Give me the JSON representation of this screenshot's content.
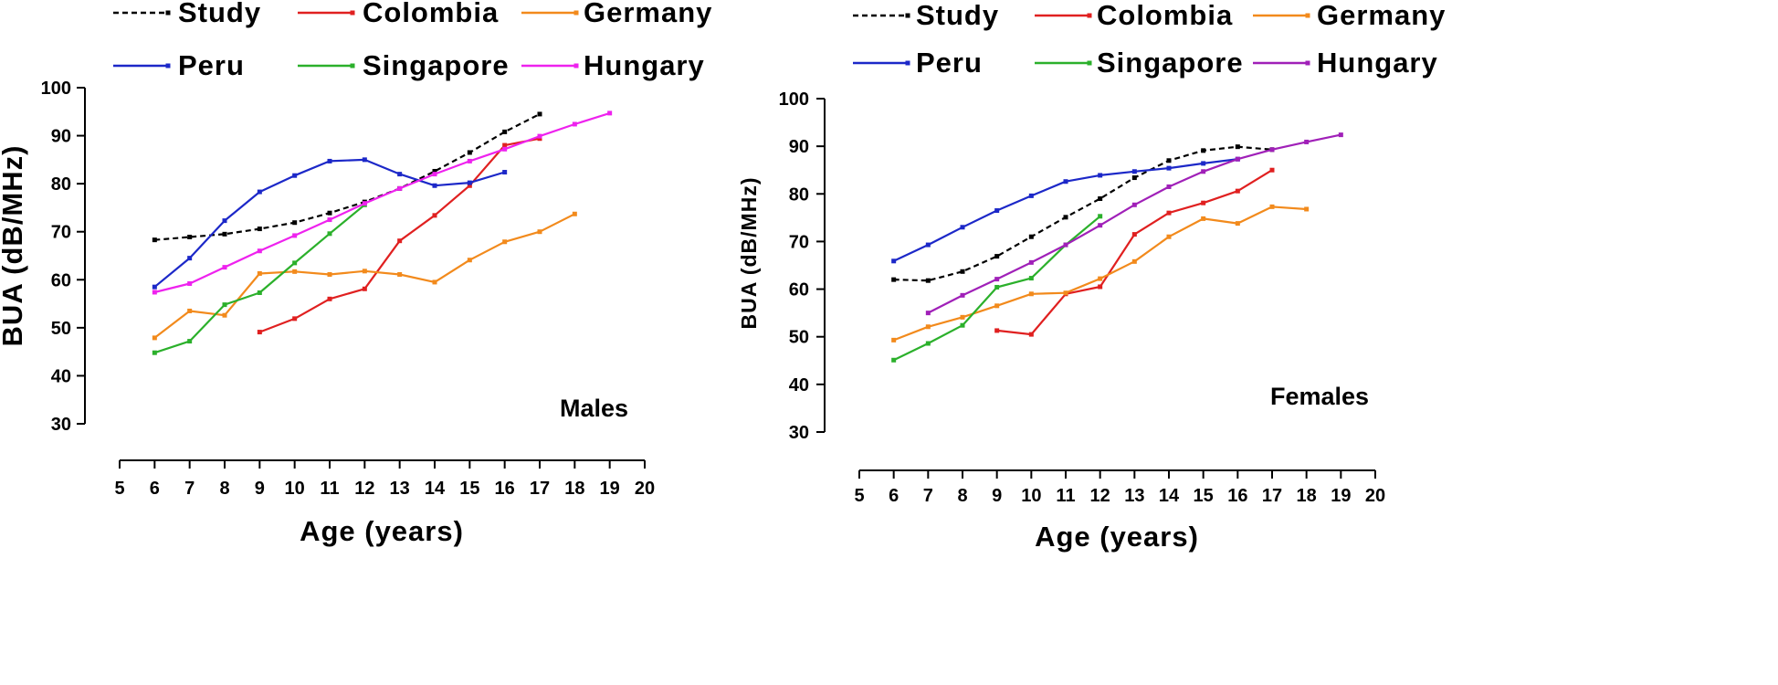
{
  "chart_data": [
    {
      "type": "line",
      "panel_label": "Males",
      "xlabel": "Age (years)",
      "ylabel": "BUA (dB/MHz)",
      "xlim": [
        5,
        20
      ],
      "ylim": [
        30,
        100
      ],
      "xticks": [
        "5",
        "6",
        "7",
        "8",
        "9",
        "10",
        "11",
        "12",
        "13",
        "14",
        "15",
        "16",
        "17",
        "18",
        "19",
        "20"
      ],
      "yticks": [
        "30",
        "40",
        "50",
        "60",
        "70",
        "80",
        "90",
        "100"
      ],
      "series": [
        {
          "name": "Study",
          "color": "#000000",
          "dashed": true,
          "x": [
            6,
            7,
            8,
            9,
            10,
            11,
            12,
            13,
            14,
            15,
            16,
            17
          ],
          "y": [
            68.3,
            68.9,
            69.5,
            70.6,
            71.9,
            73.9,
            76.2,
            79.0,
            82.6,
            86.5,
            90.8,
            94.5
          ]
        },
        {
          "name": "Colombia",
          "color": "#e02020",
          "dashed": false,
          "x": [
            9,
            10,
            11,
            12,
            13,
            14,
            15,
            16,
            17
          ],
          "y": [
            49.1,
            51.9,
            56.0,
            58.1,
            68.1,
            73.4,
            79.6,
            88.0,
            89.4
          ]
        },
        {
          "name": "Germany",
          "color": "#f28a1c",
          "dashed": false,
          "x": [
            6,
            7,
            8,
            9,
            10,
            11,
            12,
            13,
            14,
            15,
            16,
            17,
            18
          ],
          "y": [
            47.9,
            53.5,
            52.6,
            61.3,
            61.7,
            61.1,
            61.8,
            61.1,
            59.5,
            64.1,
            67.9,
            70.0,
            73.7
          ]
        },
        {
          "name": "Peru",
          "color": "#1c28c8",
          "dashed": false,
          "x": [
            6,
            7,
            8,
            9,
            10,
            11,
            12,
            13,
            14,
            15,
            16
          ],
          "y": [
            58.5,
            64.5,
            72.3,
            78.3,
            81.7,
            84.7,
            85.0,
            82.0,
            79.6,
            80.2,
            82.4
          ]
        },
        {
          "name": "Singapore",
          "color": "#2bb02b",
          "dashed": false,
          "x": [
            6,
            7,
            8,
            9,
            10,
            11,
            12
          ],
          "y": [
            44.8,
            47.2,
            54.8,
            57.3,
            63.5,
            69.6,
            75.6
          ]
        },
        {
          "name": "Hungary",
          "color": "#ee22ee",
          "dashed": false,
          "x": [
            6,
            7,
            8,
            9,
            10,
            11,
            12,
            13,
            14,
            15,
            16,
            17,
            18,
            19
          ],
          "y": [
            57.4,
            59.2,
            62.6,
            66.0,
            69.2,
            72.5,
            75.9,
            79.0,
            82.0,
            84.7,
            87.2,
            89.9,
            92.4,
            94.7
          ]
        }
      ]
    },
    {
      "type": "line",
      "panel_label": "Females",
      "xlabel": "Age (years)",
      "ylabel": "BUA (dB/MHz)",
      "xlim": [
        5,
        20
      ],
      "ylim": [
        30,
        100
      ],
      "xticks": [
        "5",
        "6",
        "7",
        "8",
        "9",
        "10",
        "11",
        "12",
        "13",
        "14",
        "15",
        "16",
        "17",
        "18",
        "19",
        "20"
      ],
      "yticks": [
        "30",
        "40",
        "50",
        "60",
        "70",
        "80",
        "90",
        "100"
      ],
      "series": [
        {
          "name": "Study",
          "color": "#000000",
          "dashed": true,
          "x": [
            6,
            7,
            8,
            9,
            10,
            11,
            12,
            13,
            14,
            15,
            16,
            17
          ],
          "y": [
            62.0,
            61.8,
            63.7,
            66.9,
            71.0,
            75.1,
            79.0,
            83.4,
            87.0,
            89.1,
            89.9,
            89.3
          ]
        },
        {
          "name": "Colombia",
          "color": "#e02020",
          "dashed": false,
          "x": [
            9,
            10,
            11,
            12,
            13,
            14,
            15,
            16,
            17
          ],
          "y": [
            51.3,
            50.5,
            59.0,
            60.5,
            71.5,
            76.0,
            78.1,
            80.6,
            85.0
          ]
        },
        {
          "name": "Germany",
          "color": "#f28a1c",
          "dashed": false,
          "x": [
            6,
            7,
            8,
            9,
            10,
            11,
            12,
            13,
            14,
            15,
            16,
            17,
            18
          ],
          "y": [
            49.3,
            52.1,
            54.1,
            56.5,
            59.0,
            59.2,
            62.2,
            65.8,
            71.0,
            74.8,
            73.8,
            77.3,
            76.8
          ]
        },
        {
          "name": "Peru",
          "color": "#1c28c8",
          "dashed": false,
          "x": [
            6,
            7,
            8,
            9,
            10,
            11,
            12,
            13,
            14,
            15,
            16
          ],
          "y": [
            65.9,
            69.3,
            73.0,
            76.5,
            79.6,
            82.6,
            83.9,
            84.7,
            85.4,
            86.4,
            87.3
          ]
        },
        {
          "name": "Singapore",
          "color": "#2bb02b",
          "dashed": false,
          "x": [
            6,
            7,
            8,
            9,
            10,
            11,
            12
          ],
          "y": [
            45.1,
            48.6,
            52.4,
            60.4,
            62.3,
            69.3,
            75.3
          ]
        },
        {
          "name": "Hungary",
          "color": "#a020b8",
          "dashed": false,
          "x": [
            7,
            8,
            9,
            10,
            11,
            12,
            13,
            14,
            15,
            16,
            17,
            18,
            19
          ],
          "y": [
            55.0,
            58.7,
            62.1,
            65.6,
            69.3,
            73.4,
            77.7,
            81.5,
            84.7,
            87.3,
            89.3,
            90.9,
            92.4
          ]
        }
      ]
    }
  ]
}
